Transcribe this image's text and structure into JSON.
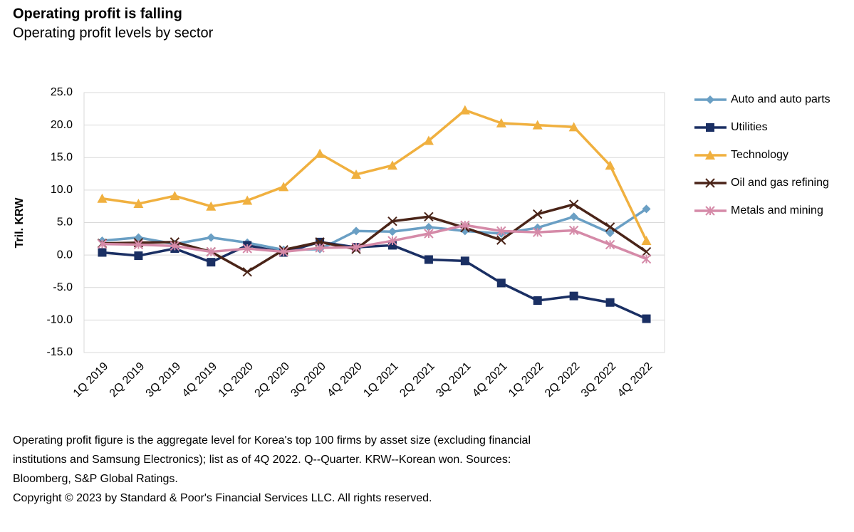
{
  "chart_data": {
    "type": "line",
    "title": "Operating profit is falling",
    "subtitle": "Operating profit levels by sector",
    "y_label": "Tril. KRW",
    "categories": [
      "1Q 2019",
      "2Q 2019",
      "3Q 2019",
      "4Q 2019",
      "1Q 2020",
      "2Q 2020",
      "3Q 2020",
      "4Q 2020",
      "1Q 2021",
      "2Q 2021",
      "3Q 2021",
      "4Q 2021",
      "1Q 2022",
      "2Q 2022",
      "3Q 2022",
      "4Q 2022"
    ],
    "series": [
      {
        "name": "Auto and auto parts",
        "color": "#6a9fc4",
        "marker": "diamond",
        "values": [
          2.2,
          2.7,
          1.7,
          2.7,
          1.9,
          0.8,
          0.9,
          3.7,
          3.6,
          4.3,
          3.7,
          3.3,
          4.2,
          5.9,
          3.4,
          7.1
        ]
      },
      {
        "name": "Utilities",
        "color": "#1a2f63",
        "marker": "square",
        "values": [
          0.4,
          -0.1,
          1.0,
          -1.1,
          1.5,
          0.4,
          2.0,
          1.2,
          1.5,
          -0.7,
          -0.9,
          -4.3,
          -7.0,
          -6.3,
          -7.3,
          -9.8
        ]
      },
      {
        "name": "Technology",
        "color": "#f0b03f",
        "marker": "triangle",
        "values": [
          8.7,
          7.9,
          9.1,
          7.5,
          8.4,
          10.5,
          15.6,
          12.4,
          13.8,
          17.6,
          22.3,
          20.3,
          20.0,
          19.7,
          13.8,
          2.2
        ]
      },
      {
        "name": "Oil and gas refining",
        "color": "#4a2418",
        "marker": "x",
        "values": [
          1.8,
          1.9,
          2.0,
          0.5,
          -2.6,
          0.8,
          2.0,
          0.9,
          5.2,
          5.9,
          4.2,
          2.3,
          6.3,
          7.8,
          4.3,
          0.5
        ]
      },
      {
        "name": "Metals and mining",
        "color": "#d58aa8",
        "marker": "star",
        "values": [
          1.7,
          1.6,
          1.4,
          0.5,
          1.0,
          0.5,
          1.1,
          1.2,
          2.2,
          3.3,
          4.6,
          3.7,
          3.5,
          3.8,
          1.6,
          -0.6
        ]
      }
    ],
    "ylim": [
      -15,
      25
    ],
    "yticks": [
      {
        "value": 25,
        "label": "25.0"
      },
      {
        "value": 20,
        "label": "20.0"
      },
      {
        "value": 15,
        "label": "15.0"
      },
      {
        "value": 10,
        "label": "10.0"
      },
      {
        "value": 5,
        "label": "5.0"
      },
      {
        "value": 0,
        "label": "0.0"
      },
      {
        "value": -5,
        "label": "-5.0"
      },
      {
        "value": -10,
        "label": "-10.0"
      },
      {
        "value": -15,
        "label": "-15.0"
      }
    ],
    "grid": true,
    "legend": "right",
    "notes": [
      "Operating profit figure is the aggregate level for Korea's top 100 firms by asset size (excluding financial",
      "institutions and Samsung Electronics); list as of 4Q 2022. Q--Quarter. KRW--Korean won. Sources:",
      "Bloomberg, S&P Global Ratings.",
      "Copyright © 2023 by Standard & Poor's Financial Services LLC. All rights reserved."
    ]
  }
}
